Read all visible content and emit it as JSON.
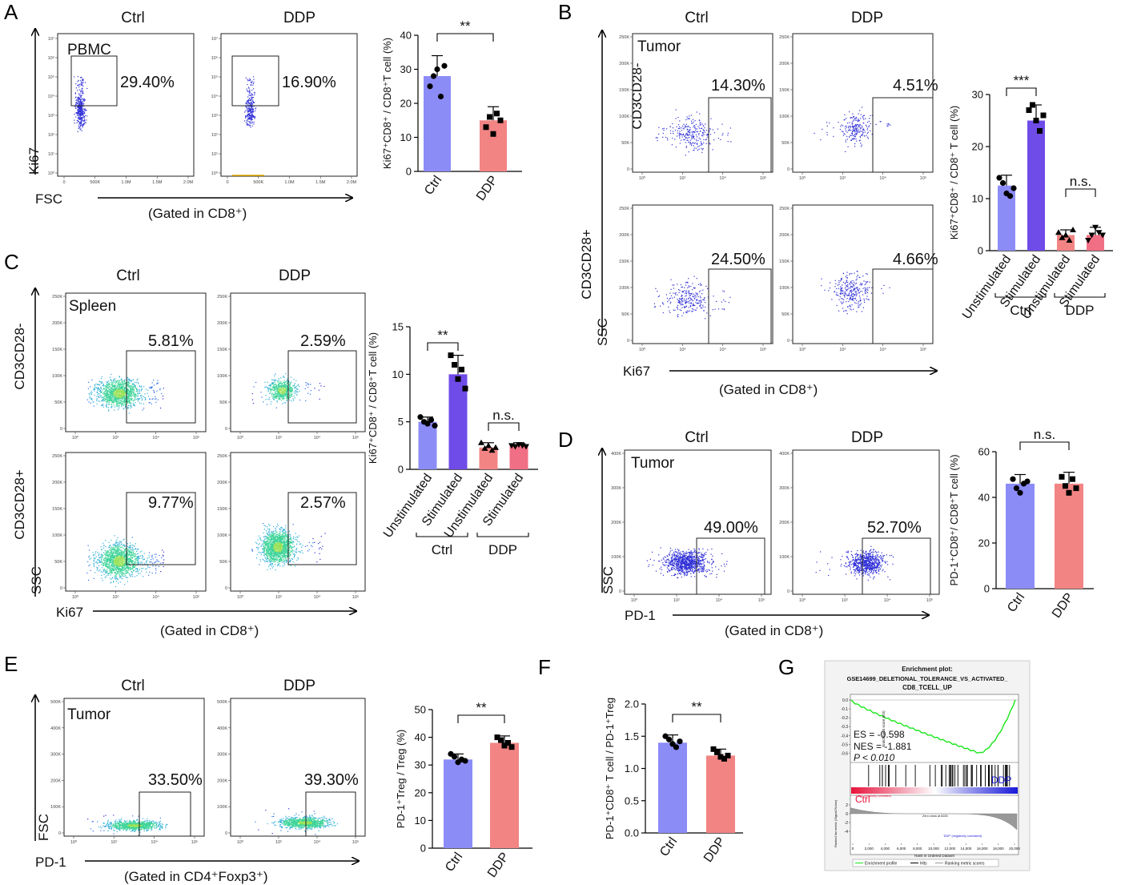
{
  "colors": {
    "ctrl_bar": "#8c8cf7",
    "stim_bar": "#6f4be8",
    "ddp_bar": "#f28484",
    "ddp_stim_bar": "#f06f84",
    "gsea_curve": "#19e619",
    "hits": "#000000"
  },
  "panel_A": {
    "letter": "A",
    "ctrl": "Ctrl",
    "ddp": "DDP",
    "tissue": "PBMC",
    "ylabel": "Ki67",
    "xlabel": "FSC",
    "gate": "(Gated in CD8⁺)",
    "pct_ctrl": "29.40%",
    "pct_ddp": "16.90%",
    "yticks": [
      "10⁷",
      "10⁶",
      "10⁵",
      "10⁴",
      "10³",
      "10²",
      "10¹",
      "10⁰"
    ],
    "xticks": [
      "0",
      "500K",
      "1.0M",
      "1.5M",
      "2.0M"
    ]
  },
  "panel_B": {
    "letter": "B",
    "ctrl": "Ctrl",
    "ddp": "DDP",
    "tissue": "Tumor",
    "row1": "CD3CD28-",
    "row2": "CD3CD28+",
    "ylabel": "SSC",
    "xlabel": "Ki67",
    "gate": "(Gated in CD8⁺)",
    "pct": [
      "14.30%",
      "4.51%",
      "24.50%",
      "4.66%"
    ],
    "yticks": [
      "250K",
      "200K",
      "150K",
      "100K",
      "50K",
      "0"
    ],
    "xticks": [
      "10⁰",
      "10²",
      "10⁴",
      "10⁶"
    ]
  },
  "panel_C": {
    "letter": "C",
    "ctrl": "Ctrl",
    "ddp": "DDP",
    "tissue": "Spleen",
    "row1": "CD3CD28-",
    "row2": "CD3CD28+",
    "ylabel": "SSC",
    "xlabel": "Ki67",
    "gate": "(Gated in CD8⁺)",
    "pct": [
      "5.81%",
      "2.59%",
      "9.77%",
      "2.57%"
    ],
    "yticks": [
      "250K",
      "200K",
      "150K",
      "100K",
      "50K",
      "0"
    ],
    "xticks": [
      "10⁰",
      "10²",
      "10⁴",
      "10⁶"
    ]
  },
  "panel_D": {
    "letter": "D",
    "ctrl": "Ctrl",
    "ddp": "DDP",
    "tissue": "Tumor",
    "ylabel": "SSC",
    "xlabel": "PD-1",
    "gate": "(Gated in CD8⁺)",
    "pct": [
      "49.00%",
      "52.70%"
    ],
    "yticks": [
      "400K",
      "300K",
      "200K",
      "100K",
      "0"
    ],
    "xticks": [
      "10⁰",
      "10²",
      "10⁴",
      "10⁶"
    ]
  },
  "panel_E": {
    "letter": "E",
    "ctrl": "Ctrl",
    "ddp": "DDP",
    "tissue": "Tumor",
    "ylabel": "FSC",
    "xlabel": "PD-1",
    "gate": "(Gated in CD4⁺Foxp3⁺)",
    "pct": [
      "33.50%",
      "39.30%"
    ],
    "yticks": [
      "500K",
      "400K",
      "300K",
      "200K",
      "100K",
      "0"
    ],
    "xticks": [
      "10⁰",
      "10²",
      "10⁴",
      "10⁶"
    ]
  },
  "panel_F": {
    "letter": "F"
  },
  "panel_G": {
    "letter": "G",
    "title1": "Enrichment plot:",
    "title2": "GSE14699_DELETIONAL_TOLERANCE_VS_ACTIVATED_",
    "title3": "CD8_TCELL_UP",
    "es": "ES = -0.598",
    "nes": "NES = -1.881",
    "pval": "P < 0.010",
    "left_label": "Ctrl",
    "right_label": "DDP",
    "es_axis": "Enrichment score (ES)",
    "metric_axis": "Ranked list metric (Signal2Noise)",
    "xlabel": "Rank in Ordered Dataset",
    "zero_cross": "Zero cross at 8226",
    "pos_corr": "'CTRL' (positively correlated)",
    "neg_corr": "'DDP' (negatively correlated)",
    "legend": [
      "Enrichment profile",
      "Hits",
      "Ranking metric scores"
    ],
    "es_ticks": [
      "0.0",
      "-0.1",
      "-0.2",
      "-0.3",
      "-0.4",
      "-0.5",
      "-0.6"
    ],
    "metric_ticks": [
      "2",
      "0",
      "-2",
      "-4"
    ],
    "rank_ticks": [
      "0",
      "2,000",
      "4,000",
      "6,000",
      "8,000",
      "10,000",
      "12,000",
      "14,000",
      "16,000",
      "18,000",
      "20,000"
    ]
  },
  "chart_data": [
    {
      "type": "bar",
      "panel": "A",
      "categories": [
        "Ctrl",
        "DDP"
      ],
      "values": [
        28,
        15
      ],
      "errors": [
        6,
        4
      ],
      "points": [
        [
          25,
          28,
          30,
          22,
          31
        ],
        [
          13,
          16,
          11,
          17,
          15
        ]
      ],
      "ylabel": "Ki67⁺CD8⁺ / CD8⁺T cell (%)",
      "ylim": [
        0,
        40
      ],
      "yticks": [
        "0",
        "10",
        "20",
        "30",
        "40"
      ],
      "significance": "**"
    },
    {
      "type": "bar",
      "panel": "B",
      "categories": [
        "Unstimulated",
        "Stimulated",
        "Unstimulated",
        "Stimulated"
      ],
      "groups": [
        "Ctrl",
        "DDP"
      ],
      "values": [
        12.5,
        25,
        3,
        3
      ],
      "errors": [
        2,
        3,
        1,
        1.5
      ],
      "points": [
        [
          14,
          13,
          11,
          10.5,
          12
        ],
        [
          27,
          28,
          25,
          23,
          26
        ],
        [
          3.5,
          2.5,
          3,
          2,
          4
        ],
        [
          2,
          3,
          4.5,
          3.5,
          3
        ]
      ],
      "ylabel": "Ki67⁺CD8⁺ / CD8⁺ T cell (%)",
      "ylim": [
        0,
        30
      ],
      "yticks": [
        "0",
        "10",
        "20",
        "30"
      ],
      "significance": [
        "***",
        "n.s."
      ]
    },
    {
      "type": "bar",
      "panel": "C",
      "categories": [
        "Unstimulated",
        "Stimulated",
        "Unstimulated",
        "Stimulated"
      ],
      "groups": [
        "Ctrl",
        "DDP"
      ],
      "values": [
        5,
        10,
        2.3,
        2.5
      ],
      "errors": [
        0.5,
        2,
        0.5,
        0.3
      ],
      "points": [
        [
          5.5,
          5,
          4.8,
          5.2,
          4.6
        ],
        [
          12,
          11,
          9.5,
          10.5,
          8.5
        ],
        [
          2.8,
          2.2,
          2.5,
          2,
          2.3
        ],
        [
          2.5,
          2.4,
          2.6,
          2.5,
          2.4
        ]
      ],
      "ylabel": "Ki67⁺CD8⁺ / CD8⁺T cell (%)",
      "ylim": [
        0,
        15
      ],
      "yticks": [
        "0",
        "5",
        "10",
        "15"
      ],
      "significance": [
        "**",
        "n.s."
      ]
    },
    {
      "type": "bar",
      "panel": "D",
      "categories": [
        "Ctrl",
        "DDP"
      ],
      "values": [
        46,
        46
      ],
      "errors": [
        4,
        5
      ],
      "points": [
        [
          48,
          44,
          42,
          46,
          47
        ],
        [
          49,
          45,
          42,
          48,
          44
        ]
      ],
      "ylabel": "PD-1⁺CD8⁺/ CD8⁺T cell (%)",
      "ylim": [
        0,
        60
      ],
      "yticks": [
        "0",
        "20",
        "40",
        "60"
      ],
      "significance": "n.s."
    },
    {
      "type": "bar",
      "panel": "E",
      "categories": [
        "Ctrl",
        "DDP"
      ],
      "values": [
        32,
        38
      ],
      "errors": [
        2,
        2.5
      ],
      "points": [
        [
          34,
          33,
          31,
          32,
          31.5
        ],
        [
          40,
          39,
          37,
          38,
          36.5
        ]
      ],
      "ylabel": "PD-1⁺Treg / Treg (%)",
      "ylim": [
        0,
        50
      ],
      "yticks": [
        "0",
        "10",
        "20",
        "30",
        "40",
        "50"
      ],
      "significance": "**"
    },
    {
      "type": "bar",
      "panel": "F",
      "categories": [
        "Ctrl",
        "DDP"
      ],
      "values": [
        1.4,
        1.2
      ],
      "errors": [
        0.12,
        0.1
      ],
      "points": [
        [
          1.5,
          1.45,
          1.38,
          1.33,
          1.42
        ],
        [
          1.3,
          1.25,
          1.18,
          1.15,
          1.2
        ]
      ],
      "ylabel": "PD-1⁺CD8⁺ T cell / PD-1⁺Treg",
      "ylim": [
        0,
        2.0
      ],
      "yticks": [
        "0.0",
        "0.5",
        "1.0",
        "1.5",
        "2.0"
      ],
      "significance": "**"
    }
  ]
}
